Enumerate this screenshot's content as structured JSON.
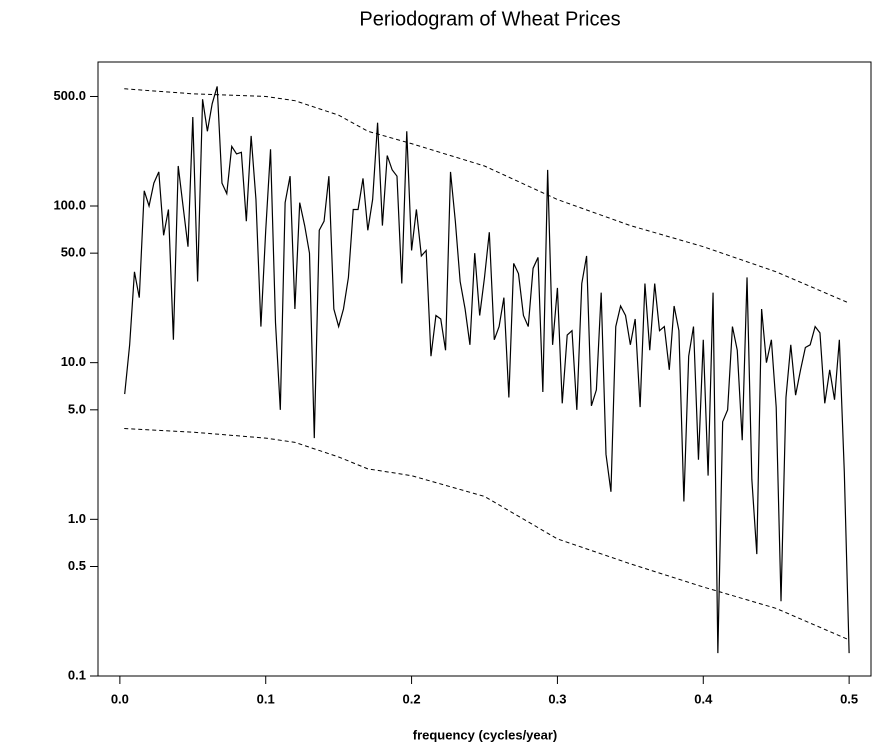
{
  "chart_data": {
    "type": "line",
    "title": "Periodogram of Wheat Prices",
    "x_label": "frequency (cycles/year)",
    "yscale": "log",
    "xlim": [
      -0.015,
      0.515
    ],
    "ylim": [
      0.1,
      830
    ],
    "xticks": [
      {
        "value": 0,
        "label": "0.0"
      },
      {
        "value": 0.1,
        "label": "0.1"
      },
      {
        "value": 0.2,
        "label": "0.2"
      },
      {
        "value": 0.3,
        "label": "0.3"
      },
      {
        "value": 0.4,
        "label": "0.4"
      },
      {
        "value": 0.5,
        "label": "0.5"
      }
    ],
    "yticks": [
      {
        "value": 0.1,
        "label": "0.1"
      },
      {
        "value": 0.5,
        "label": "0.5"
      },
      {
        "value": 1,
        "label": "1.0"
      },
      {
        "value": 5,
        "label": "5.0"
      },
      {
        "value": 10,
        "label": "10.0"
      },
      {
        "value": 50,
        "label": "50.0"
      },
      {
        "value": 100,
        "label": "100.0"
      },
      {
        "value": 500,
        "label": "500.0"
      }
    ],
    "series": [
      {
        "color": "#000000",
        "dash": false,
        "x": [
          0.0033,
          0.0067,
          0.01,
          0.0133,
          0.0167,
          0.02,
          0.0233,
          0.0267,
          0.03,
          0.0333,
          0.0367,
          0.04,
          0.0433,
          0.0467,
          0.05,
          0.0533,
          0.0567,
          0.06,
          0.0633,
          0.0667,
          0.07,
          0.0733,
          0.0767,
          0.08,
          0.0833,
          0.0867,
          0.09,
          0.0933,
          0.0967,
          0.1,
          0.1033,
          0.1067,
          0.11,
          0.1133,
          0.1167,
          0.12,
          0.1233,
          0.1267,
          0.13,
          0.1333,
          0.1367,
          0.14,
          0.1433,
          0.1467,
          0.15,
          0.1533,
          0.1567,
          0.16,
          0.1633,
          0.1667,
          0.17,
          0.1733,
          0.1767,
          0.18,
          0.1833,
          0.1867,
          0.19,
          0.1933,
          0.1967,
          0.2,
          0.2033,
          0.2067,
          0.21,
          0.2133,
          0.2167,
          0.22,
          0.2233,
          0.2267,
          0.23,
          0.2333,
          0.2367,
          0.24,
          0.2433,
          0.2467,
          0.25,
          0.2533,
          0.2567,
          0.26,
          0.2633,
          0.2667,
          0.27,
          0.2733,
          0.2767,
          0.28,
          0.2833,
          0.2867,
          0.29,
          0.2933,
          0.2967,
          0.3,
          0.3033,
          0.3067,
          0.31,
          0.3133,
          0.3167,
          0.32,
          0.3233,
          0.3267,
          0.33,
          0.3333,
          0.3367,
          0.34,
          0.3433,
          0.3467,
          0.35,
          0.3533,
          0.3567,
          0.36,
          0.3633,
          0.3667,
          0.37,
          0.3733,
          0.3767,
          0.38,
          0.3833,
          0.3867,
          0.39,
          0.3933,
          0.3967,
          0.4,
          0.4033,
          0.4067,
          0.41,
          0.4133,
          0.4167,
          0.42,
          0.4233,
          0.4267,
          0.43,
          0.4333,
          0.4367,
          0.44,
          0.4433,
          0.4467,
          0.45,
          0.4533,
          0.4567,
          0.46,
          0.4633,
          0.4667,
          0.47,
          0.4733,
          0.4767,
          0.48,
          0.4833,
          0.4867,
          0.49,
          0.4933,
          0.4967,
          0.5
        ],
        "values": [
          6.3,
          13,
          38,
          26,
          125,
          100,
          140,
          165,
          65,
          95,
          14,
          180,
          100,
          55,
          370,
          33,
          480,
          300,
          450,
          580,
          140,
          120,
          240,
          215,
          220,
          80,
          280,
          110,
          17,
          70,
          230,
          18,
          5,
          105,
          155,
          22,
          105,
          75,
          50,
          3.3,
          70,
          80,
          155,
          22,
          17,
          22,
          35,
          95,
          95,
          150,
          70,
          110,
          340,
          75,
          210,
          170,
          155,
          32,
          300,
          52,
          95,
          48,
          52,
          11,
          20,
          19,
          12,
          165,
          80,
          33,
          22,
          13,
          50,
          20,
          35,
          68,
          14,
          17,
          26,
          6,
          43,
          37,
          20,
          17,
          40,
          47,
          6.5,
          170,
          13,
          30,
          5.5,
          15,
          16,
          5,
          32,
          48,
          5.3,
          6.7,
          28,
          2.6,
          1.5,
          17,
          23,
          20,
          13,
          19,
          5.2,
          32,
          12,
          32,
          16,
          17,
          9,
          23,
          16,
          1.3,
          11,
          17,
          2.4,
          14,
          1.9,
          28,
          0.14,
          4.2,
          5,
          17,
          12,
          3.2,
          35,
          1.8,
          0.6,
          22,
          10,
          14,
          5.2,
          0.3,
          6,
          13,
          6.2,
          9,
          12.5,
          13,
          17,
          15.5,
          5.5,
          9,
          5.8,
          14,
          2,
          0.14
        ]
      },
      {
        "color": "#000000",
        "dash": true,
        "x": [
          0.003,
          0.05,
          0.1,
          0.12,
          0.15,
          0.17,
          0.2,
          0.25,
          0.3,
          0.35,
          0.4,
          0.45,
          0.5
        ],
        "values": [
          560,
          520,
          500,
          470,
          380,
          300,
          250,
          180,
          110,
          75,
          55,
          38,
          24
        ]
      },
      {
        "color": "#000000",
        "dash": true,
        "x": [
          0.003,
          0.05,
          0.1,
          0.12,
          0.15,
          0.17,
          0.2,
          0.25,
          0.3,
          0.35,
          0.4,
          0.45,
          0.5
        ],
        "values": [
          3.8,
          3.6,
          3.3,
          3.1,
          2.5,
          2.1,
          1.9,
          1.4,
          0.75,
          0.52,
          0.37,
          0.27,
          0.17
        ]
      }
    ]
  }
}
